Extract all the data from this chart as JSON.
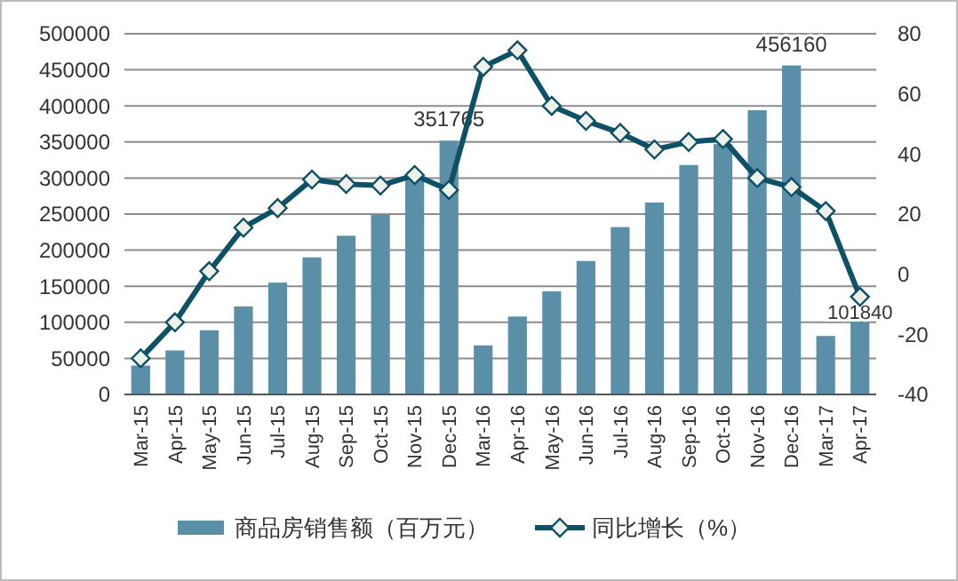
{
  "chart_data": {
    "type": "bar",
    "categories": [
      "Mar-15",
      "Apr-15",
      "May-15",
      "Jun-15",
      "Jul-15",
      "Aug-15",
      "Sep-15",
      "Oct-15",
      "Nov-15",
      "Dec-15",
      "Mar-16",
      "Apr-16",
      "May-16",
      "Jun-16",
      "Jul-16",
      "Aug-16",
      "Sep-16",
      "Oct-16",
      "Nov-16",
      "Dec-16",
      "Mar-17",
      "Apr-17"
    ],
    "series": [
      {
        "name": "商品房销售额（百万元）",
        "color": "#5b8fa8",
        "values": [
          40000,
          61000,
          89000,
          122000,
          155000,
          190000,
          220000,
          249000,
          300000,
          351765,
          68000,
          108000,
          143000,
          185000,
          232000,
          266000,
          318000,
          347000,
          394000,
          456160,
          81000,
          101840
        ],
        "value_labels": [
          null,
          null,
          null,
          null,
          null,
          null,
          null,
          null,
          null,
          "351765",
          null,
          null,
          null,
          null,
          null,
          null,
          null,
          null,
          null,
          "456160",
          null,
          "101840"
        ]
      },
      {
        "name": "同比增长（%）",
        "type": "line",
        "axis": "y2",
        "color": "#0e5166",
        "marker": "diamond",
        "values": [
          -28,
          -16,
          1,
          15.5,
          22,
          31.5,
          30,
          29.5,
          33,
          28,
          69,
          74.5,
          56,
          51,
          47,
          41.5,
          44,
          45,
          32,
          29,
          21,
          -7.5
        ]
      }
    ],
    "ylim": [
      0,
      500000
    ],
    "yticks": [
      0,
      50000,
      100000,
      150000,
      200000,
      250000,
      300000,
      350000,
      400000,
      450000,
      500000
    ],
    "y2lim": [
      -40,
      80
    ],
    "y2ticks": [
      -40,
      -20,
      0,
      20,
      40,
      60,
      80
    ],
    "grid": "y",
    "legend": "bottom"
  }
}
